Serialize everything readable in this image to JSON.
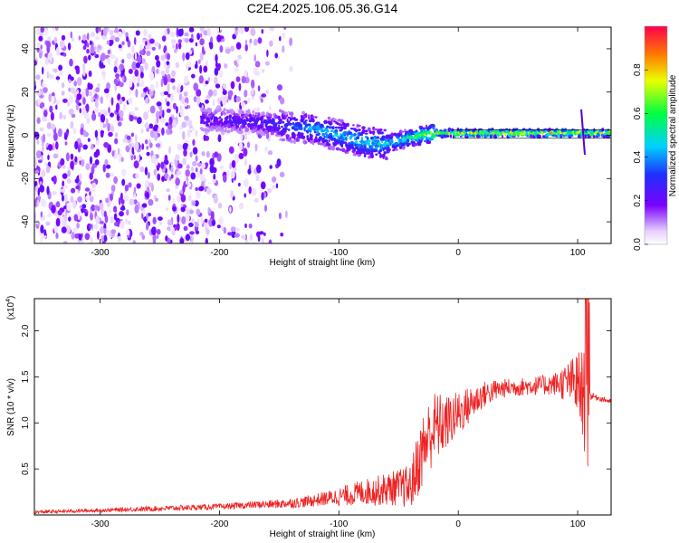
{
  "title": "C2E4.2025.106.05.36.G14",
  "chart_data": [
    {
      "type": "heatmap",
      "xlabel": "Height of straight line (km)",
      "ylabel": "Frequency (Hz)",
      "xlim": [
        -355,
        128
      ],
      "ylim": [
        -50,
        50
      ],
      "xticks": [
        -300,
        -200,
        -100,
        0,
        100
      ],
      "yticks": [
        -40,
        -20,
        0,
        20,
        40
      ],
      "colorbar": {
        "label": "Normalized spectral amplitude",
        "range": [
          0,
          1
        ],
        "ticks": [
          "0.0",
          "0.2",
          "0.4",
          "0.6",
          "0.8"
        ],
        "colormap": "white-violet-blue-cyan-green-yellow-red"
      },
      "ridge": [
        {
          "x": -200,
          "y": 7,
          "amp": 0.25
        },
        {
          "x": -170,
          "y": 6,
          "amp": 0.3
        },
        {
          "x": -140,
          "y": 4,
          "amp": 0.35
        },
        {
          "x": -120,
          "y": 3,
          "amp": 0.45
        },
        {
          "x": -100,
          "y": 0,
          "amp": 0.45
        },
        {
          "x": -80,
          "y": -3,
          "amp": 0.5
        },
        {
          "x": -60,
          "y": -4,
          "amp": 0.5
        },
        {
          "x": -40,
          "y": -1,
          "amp": 0.55
        },
        {
          "x": -20,
          "y": 1,
          "amp": 0.75
        },
        {
          "x": 0,
          "y": 1,
          "amp": 0.8
        },
        {
          "x": 40,
          "y": 1,
          "amp": 0.85
        },
        {
          "x": 80,
          "y": 1,
          "amp": 0.85
        },
        {
          "x": 105,
          "y": 1,
          "amp": 0.8
        },
        {
          "x": 128,
          "y": 1,
          "amp": 0.75
        }
      ]
    },
    {
      "type": "line",
      "xlabel": "Height of straight line (km)",
      "ylabel": "SNR (10 * v/v)",
      "multiplier": "(x10",
      "multiplier_exp": "4",
      "xlim": [
        -355,
        128
      ],
      "ylim": [
        0,
        2.35
      ],
      "xticks": [
        -300,
        -200,
        -100,
        0,
        100
      ],
      "yticks": [
        "0.5",
        "1.0",
        "1.5",
        "2.0"
      ],
      "color": "#ee2222",
      "series": [
        {
          "x": [
            -355,
            -300,
            -250,
            -200,
            -170,
            -150,
            -130,
            -110,
            -100,
            -90,
            -80,
            -70,
            -60,
            -50,
            -40,
            -35,
            -30,
            -25,
            -20,
            -10,
            0,
            10,
            20,
            30,
            40,
            60,
            80,
            95,
            100,
            105,
            108,
            110,
            115,
            128
          ],
          "y": [
            0.03,
            0.05,
            0.07,
            0.09,
            0.11,
            0.12,
            0.14,
            0.18,
            0.2,
            0.22,
            0.25,
            0.26,
            0.28,
            0.3,
            0.3,
            0.5,
            0.7,
            0.85,
            0.95,
            1.0,
            1.1,
            1.2,
            1.3,
            1.35,
            1.38,
            1.4,
            1.42,
            1.45,
            1.4,
            1.3,
            0.9,
            1.3,
            1.28,
            1.23
          ],
          "noise": [
            0.02,
            0.02,
            0.03,
            0.03,
            0.04,
            0.05,
            0.06,
            0.08,
            0.1,
            0.12,
            0.14,
            0.16,
            0.18,
            0.2,
            0.25,
            0.35,
            0.4,
            0.4,
            0.4,
            0.3,
            0.25,
            0.2,
            0.15,
            0.12,
            0.1,
            0.1,
            0.12,
            0.25,
            0.4,
            0.5,
            0.7,
            0.05,
            0.03,
            0.03
          ]
        }
      ]
    }
  ]
}
